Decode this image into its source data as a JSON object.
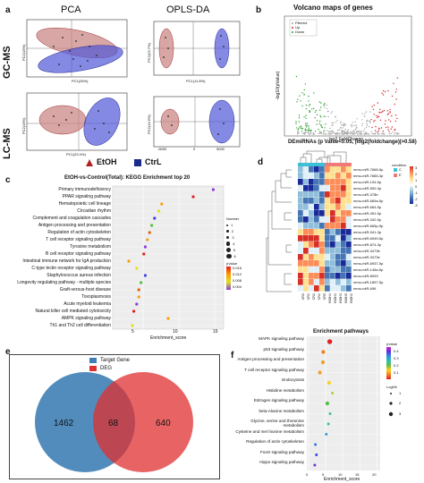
{
  "panel_labels": [
    "a",
    "b",
    "c",
    "d",
    "e",
    "f"
  ],
  "panel_a": {
    "col_titles": [
      "PCA",
      "OPLS-DA"
    ],
    "row_titles": [
      "GC-MS",
      "LC-MS"
    ],
    "axes": [
      {
        "x": "PC1(26%)",
        "y": "PC2(15%)"
      },
      {
        "x": "PC1(11.8%)",
        "y": "PC2(23.7%)"
      },
      {
        "x": "PC1(23.4%)",
        "y": "PC2(15%)"
      },
      {
        "x": "",
        "y": "PC2(14.6%)"
      }
    ],
    "lc_opls_ticks": [
      "-5000",
      "0",
      "5000"
    ],
    "legend": [
      {
        "name": "EtOH",
        "color": "#b22222"
      },
      {
        "name": "CtrL",
        "color": "#1c2a8a"
      }
    ]
  },
  "panel_b": {
    "title": "Volcano maps of genes",
    "xlabel": "log2 FoldChange",
    "ylabel": "-log10(pValue)",
    "legend": [
      "Filtered",
      "Up",
      "Down"
    ],
    "colors": {
      "filtered": "#a8a8a8",
      "up": "#d62728",
      "down": "#2ca02c"
    }
  },
  "panel_c": {
    "title": "EtOH-vs-Control(Total): KEGG Enrichment top 20",
    "xlabel": "Enrichment_score",
    "xticks": [
      "5",
      "10",
      "15"
    ],
    "size_legend_title": "Number",
    "size_legend": [
      "1",
      "2",
      "3",
      "4",
      "5",
      "6"
    ],
    "color_legend_title": "pValue",
    "color_legend": [
      "0.016",
      "0.012",
      "0.008",
      "0.004"
    ],
    "pathways": [
      {
        "name": "Primary immunodeficiency",
        "score": 14.8
      },
      {
        "name": "PPAR signaling pathway",
        "score": 12.0
      },
      {
        "name": "Hematopoietic cell lineage",
        "score": 7.6
      },
      {
        "name": "Circadian rhythm",
        "score": 7.2
      },
      {
        "name": "Complement and coagulation cascades",
        "score": 6.6
      },
      {
        "name": "Antigen processing and presentation",
        "score": 6.2
      },
      {
        "name": "Regulation of actin cytoskeleton",
        "score": 5.9
      },
      {
        "name": "T cell receptor signaling pathway",
        "score": 5.6
      },
      {
        "name": "Tyrosine metabolism",
        "score": 5.3
      },
      {
        "name": "B cell receptor signaling pathway",
        "score": 5.1
      },
      {
        "name": "Intestinal immune network for IgA production",
        "score": 3.0
      },
      {
        "name": "C-type lectin receptor signaling pathway",
        "score": 4.1
      },
      {
        "name": "Staphylococcus aureus infection",
        "score": 5.3
      },
      {
        "name": "Longevity regulating pathway - multiple species",
        "score": 4.7
      },
      {
        "name": "Graft-versus-host disease",
        "score": 4.4
      },
      {
        "name": "Toxoplasmosis",
        "score": 4.4
      },
      {
        "name": "Acute myeloid leukemia",
        "score": 4.1
      },
      {
        "name": "Natural killer cell mediated cytotoxicity",
        "score": 3.7
      },
      {
        "name": "AMPK signaling pathway",
        "score": 8.5
      },
      {
        "name": "Th1 and Th2 cell differentiation",
        "score": 3.5
      }
    ]
  },
  "panel_d": {
    "title": "DEmiRNAs (p Value<0.05, |log2(foldchange)|>0.58)",
    "legend_title": "condition",
    "condition_legend": [
      "C",
      "E"
    ],
    "scale": [
      "3",
      "2",
      "1",
      "0",
      "-1",
      "-2",
      "-3"
    ],
    "rows": [
      "mmu-miR-7668-5p",
      "mmu-miR-7665-3p",
      "mmu-miR-194-5p",
      "mmu-miR-500-3p",
      "mmu-miR-378b",
      "mmu-miR-669a-5p",
      "mmu-miR-664-5p",
      "mmu-miR-491-5p",
      "mmu-miR-342-5p",
      "mmu-miR-669p-5p",
      "mmu-miR-541-3p",
      "mmu-miR-6949-5p",
      "mmu-miR-874-3p",
      "mmu-miR-3473b",
      "mmu-miR-3473e",
      "mmu-miR-6937-5p",
      "mmu-miR-145a-5p",
      "mmu-miR-8093",
      "mmu-miR-1897-5p",
      "mmu-miR-696"
    ],
    "cols": [
      "CR3",
      "CR1",
      "CR2",
      "CR4",
      "CR5",
      "EtOH4",
      "EtOH1",
      "EtOH3",
      "EtOH5",
      "EtOH2"
    ]
  },
  "panel_e": {
    "legend": [
      {
        "name": "Target Gene",
        "color": "#3f7fb5"
      },
      {
        "name": "DEG",
        "color": "#e03030"
      }
    ],
    "values": {
      "left": "1462",
      "center": "68",
      "right": "640"
    }
  },
  "panel_f": {
    "title": "Enrichment pathways",
    "xlabel": "Enrichment_score",
    "xticks": [
      "0",
      "5",
      "10",
      "15",
      "20"
    ],
    "color_legend_title": "pValue",
    "color_legend": [
      "0.4",
      "0.3",
      "0.2",
      "0.1"
    ],
    "size_legend_title": "LogHit",
    "size_legend": [
      "1",
      "2",
      "3"
    ],
    "pathways": [
      {
        "name": "MAPK signaling pathway",
        "score": 6.2,
        "size": 3,
        "color": "#e02020"
      },
      {
        "name": "p53 signaling pathway",
        "score": 4.3,
        "size": 2,
        "color": "#f08020"
      },
      {
        "name": "Antigen processing and presentation",
        "score": 4.2,
        "size": 2,
        "color": "#f0a020"
      },
      {
        "name": "T cell receptor signaling pathway",
        "score": 3.3,
        "size": 2,
        "color": "#f0a030"
      },
      {
        "name": "Endocytosis",
        "score": 6.0,
        "size": 2,
        "color": "#ffd020"
      },
      {
        "name": "Histidine metabolism",
        "score": 7.0,
        "size": 1,
        "color": "#a8d040"
      },
      {
        "name": "Estrogen signaling pathway",
        "score": 5.5,
        "size": 2,
        "color": "#50c040"
      },
      {
        "name": "beta-Alanine metabolism",
        "score": 6.3,
        "size": 1,
        "color": "#40c080"
      },
      {
        "name": "Glycine, serine and threonine metabolism",
        "score": 5.8,
        "size": 1,
        "color": "#30c0b0"
      },
      {
        "name": "Cysteine and met hionine metabolism",
        "score": 5.2,
        "size": 1,
        "color": "#30a0d0"
      },
      {
        "name": "Regulation of actin cytoskeleton",
        "score": 2.0,
        "size": 1,
        "color": "#3070e0"
      },
      {
        "name": "FoxO signaling pathway",
        "score": 2.3,
        "size": 1,
        "color": "#4040e0"
      },
      {
        "name": "Hippo signaling pathway",
        "score": 1.8,
        "size": 1,
        "color": "#6a30d0"
      }
    ]
  }
}
